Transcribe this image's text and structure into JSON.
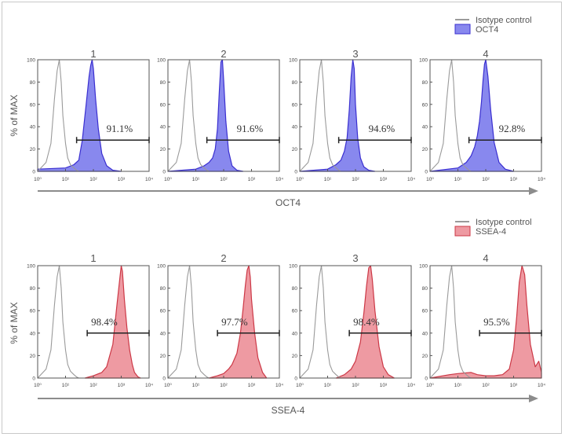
{
  "colors": {
    "oct4_fill": "#8888ee",
    "oct4_stroke": "#3a2fd0",
    "ssea4_fill": "#ee9aa2",
    "ssea4_stroke": "#cc3846",
    "isotype_stroke": "#9a9a9a",
    "gate": "#222222",
    "axis_arrow": "#8c8c8c",
    "text": "#555555"
  },
  "chart_data": [
    {
      "type": "area",
      "marker": "OCT4",
      "xlabel": "OCT4",
      "ylabel": "% of MAX",
      "x_scale": "log",
      "xlim": [
        1,
        10000
      ],
      "ylim": [
        0,
        100
      ],
      "x_tick_labels": [
        "10⁰",
        "10¹",
        "10²",
        "10³",
        "10⁴"
      ],
      "y_tick_labels": [
        "0",
        "20",
        "40",
        "60",
        "80",
        "100"
      ],
      "legend": {
        "placement": "top-right",
        "entries": [
          "Isotype control",
          "OCT4"
        ]
      },
      "panels": [
        {
          "title": "1",
          "percent": "91.1%",
          "gate": [
            25,
            10000
          ],
          "isotype": {
            "x": [
              1,
              2,
              3,
              4,
              5,
              6,
              7,
              8,
              10,
              12,
              15,
              20,
              25,
              30,
              40
            ],
            "y": [
              0,
              8,
              25,
              65,
              90,
              100,
              80,
              50,
              25,
              12,
              6,
              3,
              1,
              0,
              0
            ]
          },
          "marker_series": {
            "x": [
              1,
              10,
              20,
              30,
              40,
              55,
              70,
              80,
              90,
              100,
              120,
              150,
              200,
              300,
              500,
              1000
            ],
            "y": [
              2,
              3,
              6,
              10,
              28,
              60,
              85,
              95,
              100,
              92,
              65,
              38,
              16,
              5,
              1,
              0
            ]
          }
        },
        {
          "title": "2",
          "percent": "91.6%",
          "gate": [
            25,
            10000
          ],
          "isotype": {
            "x": [
              1,
              2,
              3,
              4,
              5,
              6,
              7,
              8,
              10,
              12,
              15,
              20,
              25,
              30,
              40
            ],
            "y": [
              0,
              8,
              25,
              65,
              90,
              100,
              80,
              50,
              25,
              12,
              6,
              3,
              1,
              0,
              0
            ]
          },
          "marker_series": {
            "x": [
              1,
              10,
              20,
              30,
              40,
              50,
              60,
              70,
              80,
              90,
              100,
              120,
              150,
              200,
              300,
              500
            ],
            "y": [
              0,
              2,
              5,
              8,
              12,
              20,
              38,
              72,
              98,
              100,
              82,
              45,
              18,
              5,
              1,
              0
            ]
          }
        },
        {
          "title": "3",
          "percent": "94.6%",
          "gate": [
            25,
            10000
          ],
          "isotype": {
            "x": [
              1,
              2,
              3,
              4,
              5,
              6,
              7,
              8,
              10,
              12,
              15,
              20,
              25,
              30,
              40
            ],
            "y": [
              0,
              8,
              25,
              65,
              90,
              100,
              80,
              50,
              25,
              12,
              6,
              3,
              1,
              0,
              0
            ]
          },
          "marker_series": {
            "x": [
              1,
              10,
              20,
              30,
              40,
              50,
              60,
              70,
              80,
              90,
              100,
              120,
              150,
              200,
              300,
              500
            ],
            "y": [
              0,
              2,
              6,
              10,
              18,
              30,
              55,
              85,
              100,
              92,
              60,
              30,
              12,
              4,
              1,
              0
            ]
          }
        },
        {
          "title": "4",
          "percent": "92.8%",
          "gate": [
            25,
            10000
          ],
          "isotype": {
            "x": [
              1,
              2,
              3,
              4,
              5,
              6,
              7,
              8,
              10,
              12,
              15,
              20,
              25,
              30,
              40
            ],
            "y": [
              0,
              8,
              25,
              65,
              90,
              100,
              80,
              50,
              25,
              12,
              6,
              3,
              1,
              0,
              0
            ]
          },
          "marker_series": {
            "x": [
              1,
              10,
              20,
              30,
              40,
              50,
              60,
              70,
              80,
              90,
              100,
              120,
              150,
              200,
              300,
              500,
              1000
            ],
            "y": [
              0,
              3,
              8,
              14,
              22,
              32,
              45,
              62,
              82,
              96,
              100,
              85,
              55,
              26,
              8,
              2,
              0
            ]
          }
        }
      ]
    },
    {
      "type": "area",
      "marker": "SSEA-4",
      "xlabel": "SSEA-4",
      "ylabel": "% of MAX",
      "x_scale": "log",
      "xlim": [
        1,
        10000
      ],
      "ylim": [
        0,
        100
      ],
      "x_tick_labels": [
        "10⁰",
        "10¹",
        "10²",
        "10³",
        "10⁴"
      ],
      "y_tick_labels": [
        "0",
        "20",
        "40",
        "60",
        "80",
        "100"
      ],
      "legend": {
        "placement": "top-right",
        "entries": [
          "Isotype control",
          "SSEA-4"
        ]
      },
      "panels": [
        {
          "title": "1",
          "percent": "98.4%",
          "gate": [
            60,
            10000
          ],
          "isotype": {
            "x": [
              1,
              2,
              3,
              4,
              5,
              6,
              7,
              8,
              10,
              12,
              15,
              20,
              25,
              30,
              40
            ],
            "y": [
              0,
              8,
              25,
              65,
              90,
              100,
              80,
              50,
              25,
              12,
              6,
              3,
              1,
              0,
              0
            ]
          },
          "marker_series": {
            "x": [
              50,
              100,
              200,
              300,
              500,
              700,
              900,
              1000,
              1100,
              1300,
              1600,
              2000,
              2500,
              3000,
              4000,
              5000
            ],
            "y": [
              0,
              2,
              5,
              10,
              30,
              65,
              90,
              100,
              95,
              70,
              45,
              25,
              12,
              5,
              1,
              0
            ]
          }
        },
        {
          "title": "2",
          "percent": "97.7%",
          "gate": [
            60,
            10000
          ],
          "isotype": {
            "x": [
              1,
              2,
              3,
              4,
              5,
              6,
              7,
              8,
              10,
              12,
              15,
              20,
              25,
              30,
              40
            ],
            "y": [
              0,
              8,
              25,
              65,
              90,
              100,
              80,
              50,
              25,
              12,
              6,
              3,
              1,
              0,
              0
            ]
          },
          "marker_series": {
            "x": [
              30,
              60,
              100,
              150,
              200,
              300,
              400,
              500,
              600,
              700,
              800,
              900,
              1000,
              1300,
              1700,
              2500,
              3500
            ],
            "y": [
              0,
              2,
              4,
              8,
              12,
              22,
              40,
              62,
              82,
              96,
              100,
              90,
              70,
              40,
              18,
              5,
              0
            ]
          }
        },
        {
          "title": "3",
          "percent": "98.4%",
          "gate": [
            60,
            10000
          ],
          "isotype": {
            "x": [
              1,
              2,
              3,
              4,
              5,
              6,
              7,
              8,
              10,
              12,
              15,
              20,
              25,
              30,
              40
            ],
            "y": [
              0,
              8,
              25,
              65,
              90,
              100,
              80,
              50,
              25,
              12,
              6,
              3,
              1,
              0,
              0
            ]
          },
          "marker_series": {
            "x": [
              20,
              40,
              70,
              100,
              150,
              200,
              250,
              300,
              350,
              400,
              500,
              700,
              1000,
              1500,
              2500
            ],
            "y": [
              0,
              3,
              8,
              15,
              32,
              58,
              82,
              98,
              100,
              88,
              60,
              28,
              10,
              3,
              0
            ]
          }
        },
        {
          "title": "4",
          "percent": "95.5%",
          "gate": [
            60,
            10000
          ],
          "isotype": {
            "x": [
              1,
              2,
              3,
              4,
              5,
              6,
              7,
              8,
              10,
              12,
              15,
              20,
              25,
              30,
              40
            ],
            "y": [
              0,
              8,
              25,
              65,
              90,
              100,
              80,
              50,
              25,
              12,
              6,
              3,
              1,
              0,
              0
            ]
          },
          "marker_series": {
            "x": [
              1,
              5,
              10,
              30,
              50,
              100,
              200,
              400,
              700,
              1000,
              1300,
              1600,
              2000,
              2500,
              3000,
              4000,
              6000,
              8000,
              10000
            ],
            "y": [
              0,
              3,
              4,
              5,
              3,
              2,
              2,
              3,
              8,
              25,
              55,
              85,
              100,
              92,
              65,
              30,
              10,
              15,
              5
            ]
          }
        }
      ]
    }
  ]
}
